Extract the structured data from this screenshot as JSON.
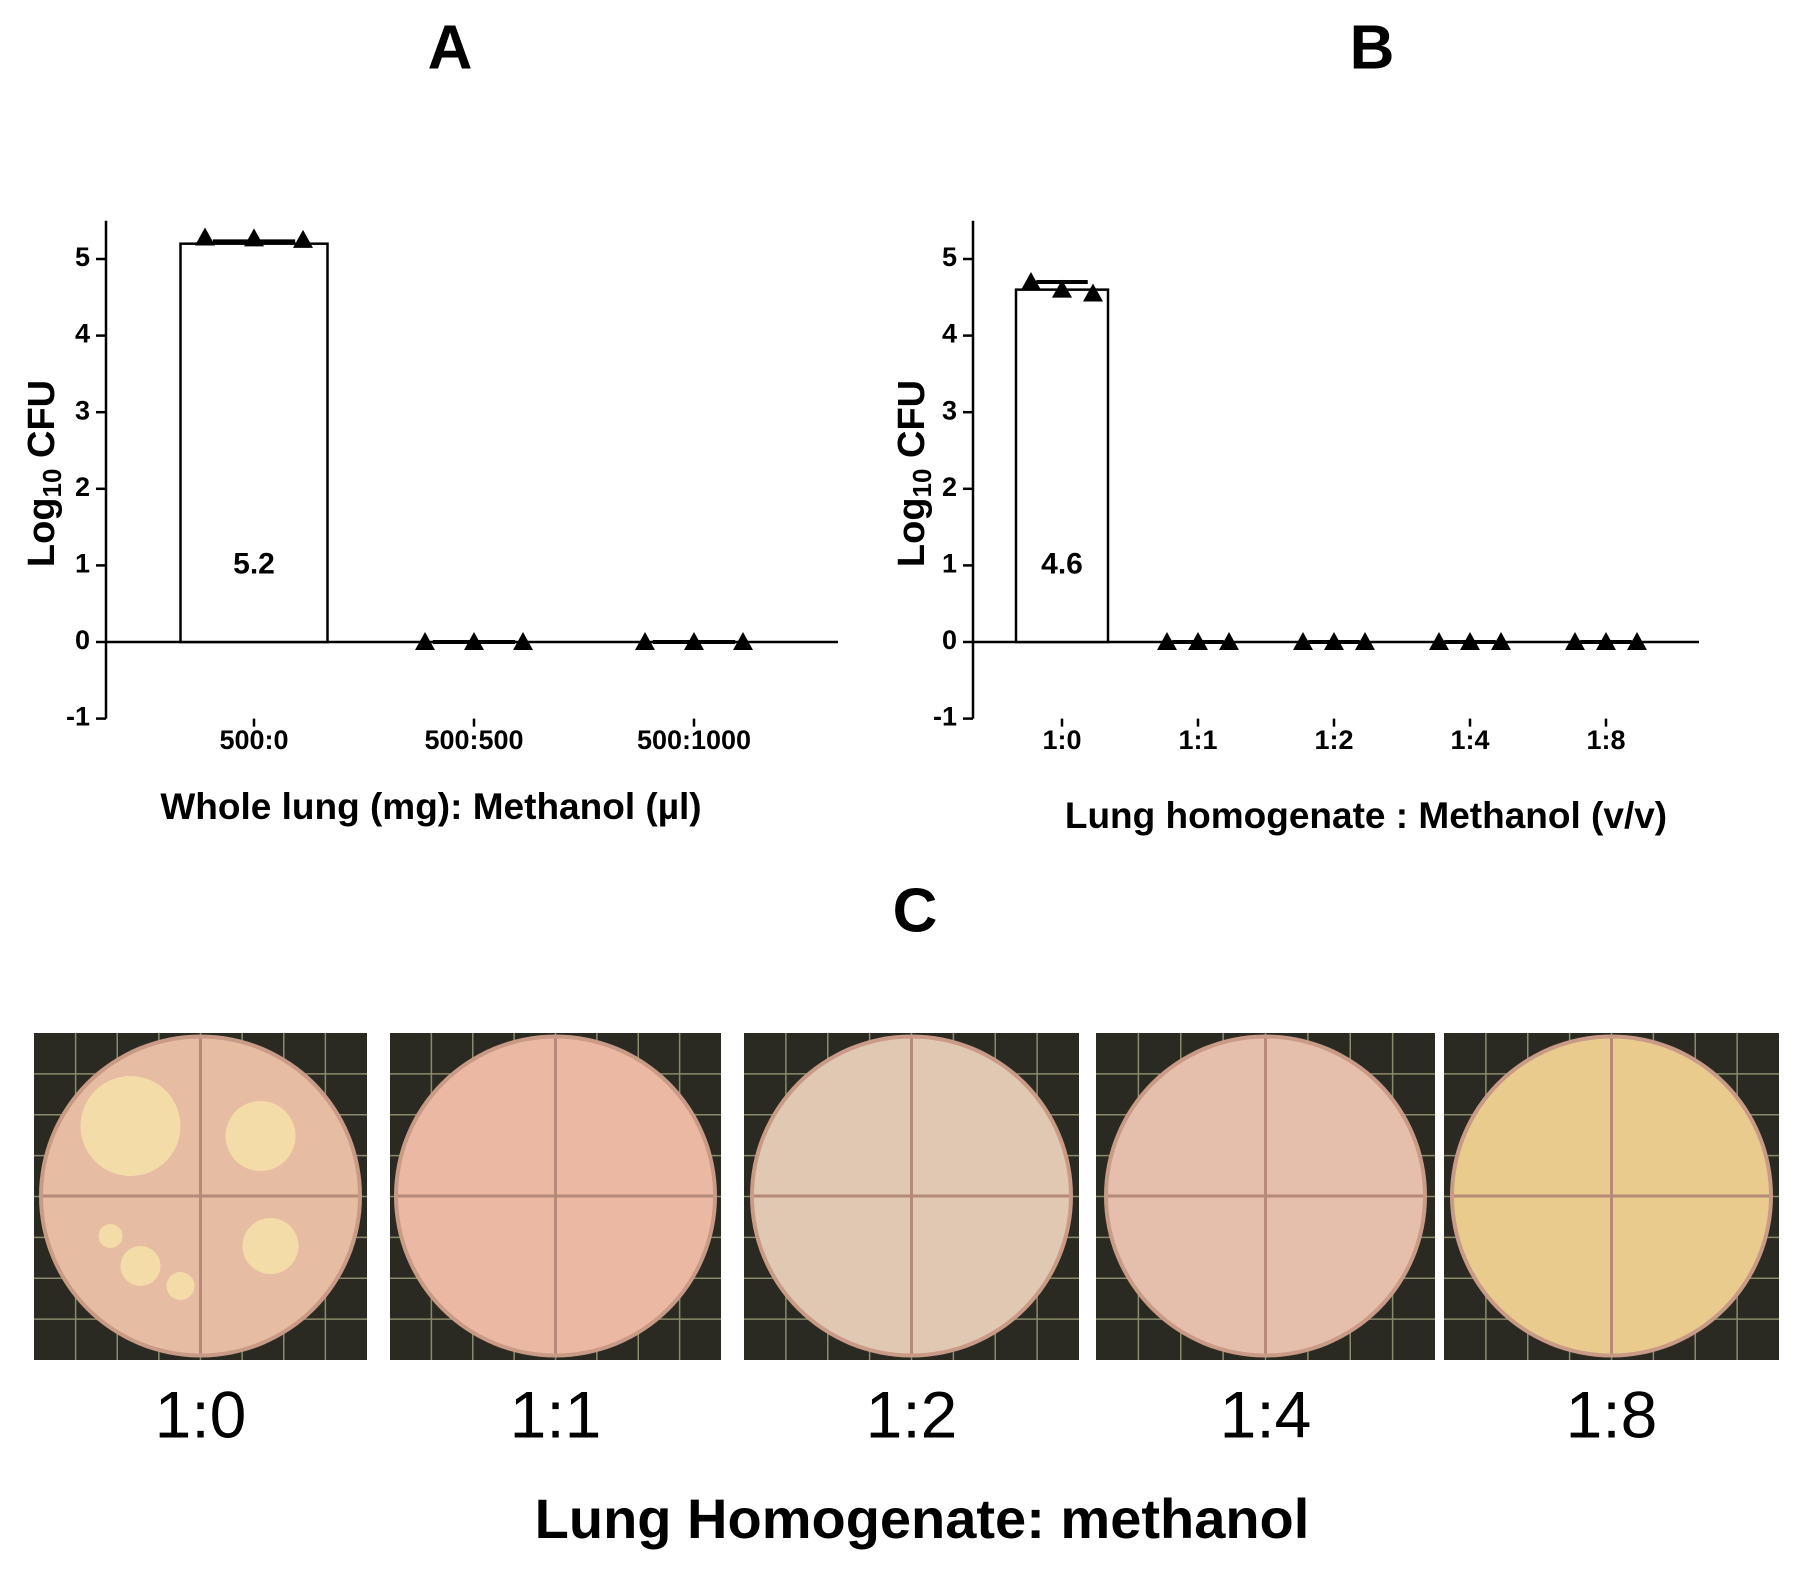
{
  "chart_data": [
    {
      "type": "bar",
      "panel": "A",
      "ylabel": [
        "Log",
        "10",
        " CFU"
      ],
      "xlabel": "Whole lung (mg): Methanol (µl)",
      "categories": [
        "500:0",
        "500:500",
        "500:1000"
      ],
      "values": [
        5.2,
        0,
        0
      ],
      "errors": [
        0.03,
        0,
        0
      ],
      "points": [
        [
          5.28,
          5.27,
          5.25
        ],
        [
          0,
          0,
          0
        ],
        [
          0,
          0,
          0
        ]
      ],
      "ylim": [
        -1,
        5.5
      ],
      "yticks": [
        -1,
        0,
        1,
        2,
        3,
        4,
        5
      ],
      "color": "#ffffff"
    },
    {
      "type": "bar",
      "panel": "B",
      "ylabel": [
        "Log",
        "10",
        " CFU"
      ],
      "xlabel": "Lung homogenate : Methanol (v/v)",
      "categories": [
        "1:0",
        "1:1",
        "1:2",
        "1:4",
        "1:8"
      ],
      "values": [
        4.6,
        0,
        0,
        0,
        0
      ],
      "errors": [
        0.1,
        0,
        0,
        0,
        0
      ],
      "points": [
        [
          4.7,
          4.6,
          4.55
        ],
        [
          0,
          0,
          0
        ],
        [
          0,
          0,
          0
        ],
        [
          0,
          0,
          0
        ],
        [
          0,
          0,
          0
        ]
      ],
      "ylim": [
        -1,
        5.5
      ],
      "yticks": [
        -1,
        0,
        1,
        2,
        3,
        4,
        5
      ],
      "color": "#ffffff"
    }
  ],
  "panel_c": {
    "label": "C",
    "plates": [
      "1:0",
      "1:1",
      "1:2",
      "1:4",
      "1:8"
    ],
    "caption": "Lung Homogenate: methanol"
  }
}
